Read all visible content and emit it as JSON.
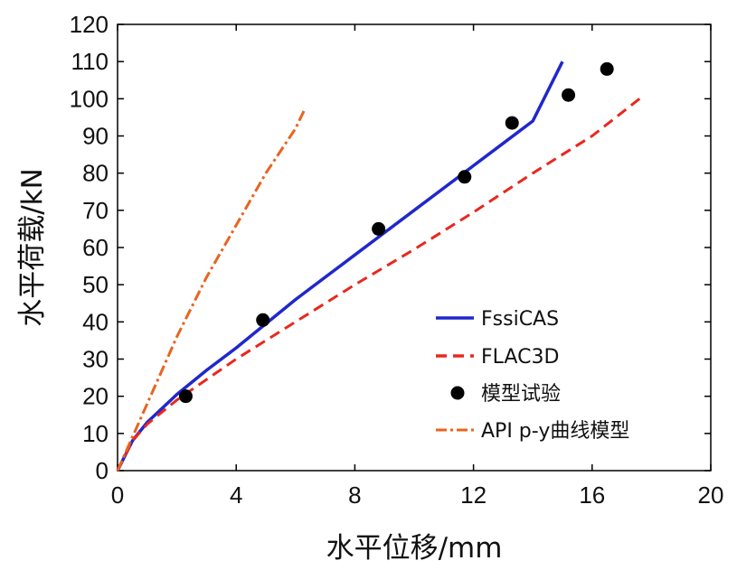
{
  "chart_data": {
    "type": "line",
    "xlabel": "水平位移/mm",
    "ylabel": "水平荷载/kN",
    "xlim": [
      0,
      20
    ],
    "ylim": [
      0,
      120
    ],
    "xticks": [
      0,
      4,
      8,
      12,
      16,
      20
    ],
    "yticks": [
      0,
      10,
      20,
      30,
      40,
      50,
      60,
      70,
      80,
      90,
      100,
      110,
      120
    ],
    "grid": false,
    "legend_position": "bottom-right",
    "series": [
      {
        "name": "FssiCAS",
        "style": "solid",
        "color": "#1f28cc",
        "x": [
          0,
          0.5,
          1.0,
          2.0,
          3.0,
          4.0,
          5.0,
          6.0,
          7.0,
          8.0,
          9.0,
          10.0,
          11.0,
          12.0,
          13.0,
          14.0,
          15.0
        ],
        "y": [
          0,
          8,
          13,
          20.5,
          27,
          33,
          39.5,
          46,
          52,
          58,
          64,
          70,
          76,
          82,
          88,
          94,
          110
        ]
      },
      {
        "name": "FLAC3D",
        "style": "dashed",
        "color": "#e8281e",
        "x": [
          0,
          0.5,
          1.0,
          2.0,
          3.0,
          4.0,
          5.0,
          6.0,
          8.0,
          10.0,
          12.0,
          14.0,
          16.0,
          17.6
        ],
        "y": [
          0,
          8,
          12.5,
          19,
          24.5,
          30,
          35,
          40,
          50,
          59.5,
          69.5,
          80,
          90,
          100
        ]
      },
      {
        "name": "模型试验",
        "style": "markers",
        "color": "#000000",
        "x": [
          2.3,
          4.9,
          8.8,
          11.7,
          13.3,
          15.2,
          16.5
        ],
        "y": [
          20,
          40.5,
          65,
          79,
          93.5,
          101,
          108
        ]
      },
      {
        "name": "API p-y曲线模型",
        "style": "dashdot",
        "color": "#e8641e",
        "x": [
          0,
          0.5,
          1.0,
          2.0,
          3.0,
          4.0,
          5.0,
          6.0,
          6.3
        ],
        "y": [
          0,
          9,
          18,
          36,
          52,
          66,
          80,
          92,
          97
        ]
      }
    ]
  }
}
